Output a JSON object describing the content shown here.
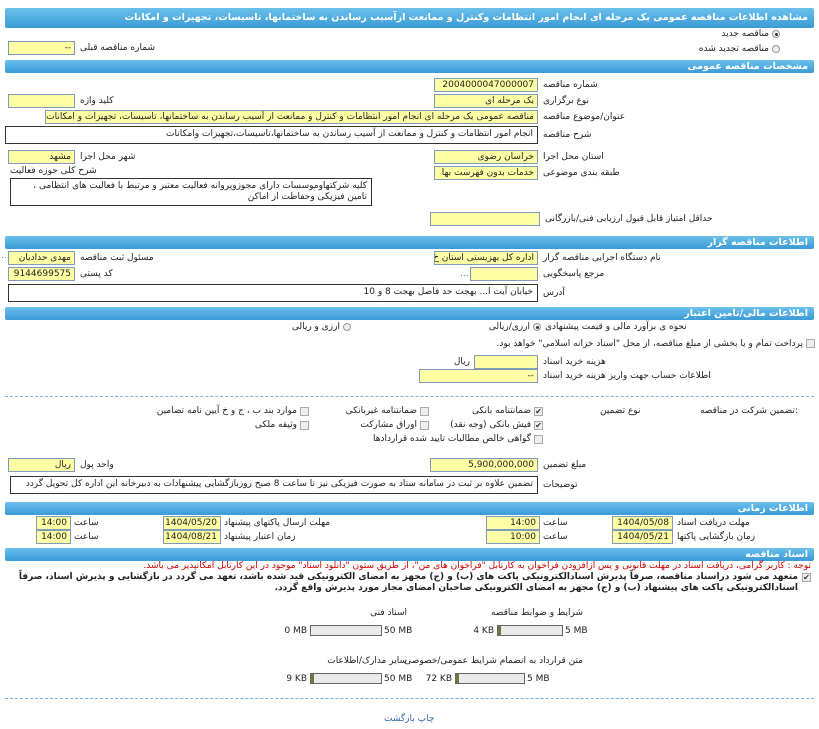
{
  "title": "مشاهده اطلاعات مناقصه عمومی یک مرحله ای انجام امور انتظامات وکنترل و ممانعت ازآسیب رساندن به ساختمانها، تاسیسات، تجهیزات و امکانات",
  "tender_type": {
    "new_label": "مناقصه جدید",
    "new_selected": true,
    "renewed_label": "مناقصه تجدید شده",
    "prev_number_label": "شماره مناقصه قبلی",
    "prev_number": "--"
  },
  "general": {
    "header": "مشخصات مناقصه عمومی",
    "number_label": "شماره مناقصه",
    "number": "2004000047000007",
    "holding_type_label": "نوع برگزاری",
    "holding_type": "یک مرحله ای",
    "keyword_label": "کلید واژه",
    "keyword": "",
    "subject_label": "عنوان/موضوع مناقصه",
    "subject": "مناقصه عمومی یک مرحله ای انجام امور انتظامات و کنترل و ممانعت از آسیب رساندن به ساختمانها، تاسیسات، تجهیزات و امکانات",
    "description_label": "شرح مناقصه",
    "description": "انجام امور انتظامات و کنترل و ممانعت از آسیب رساندن به ساختمانها،تاسیسات،تجهیزات وامکانات",
    "province_label": "استان محل اجرا",
    "province": "خراسان رضوی",
    "city_label": "شهر محل اجرا",
    "city": "مشهد",
    "category_label": "طبقه بندی موضوعی",
    "category": "خدمات بدون فهرست بها",
    "activity_label": "شرح کلی حوزه فعالیت",
    "activity": "کلیه شرکتهاوموسسات دارای مجوزوپروانه فعالیت معتبر و مرتبط با فعالیت های انتظامی ، تامین فیزیکی وحفاظت از اماکن",
    "min_score_label": "حداقل امتیاز قابل قبول ارزیابی فنی/بازرگانی",
    "min_score": ""
  },
  "organizer": {
    "header": "اطلاعات مناقصه گزار",
    "org_label": "نام دستگاه اجرایی مناقصه گزار",
    "org": "اداره کل بهزیستی استان خ",
    "responsible_label": "مسئول ثبت مناقصه",
    "responsible": "مهدی حدادیان",
    "reference_label": "مرجع پاسخگویی",
    "reference": "",
    "postal_label": "کد پستی",
    "postal": "9144699575",
    "address_label": "آدرس",
    "address": "خیابان آیت ا... بهجت حد فاصل بهجت 8 و 10",
    "more": "..."
  },
  "finance": {
    "header": "اطلاعات مالی/تامین اعتبار",
    "estimate_label": "نحوه ی برآورد مالی و قیمت پیشنهادی",
    "opt_rial": "ارزی/ریالی",
    "opt_rial_selected": true,
    "opt_both": "ارزی و ریالی",
    "treasury_label": "پرداخت تمام و یا بخشی از مبلغ مناقصه، از محل \"اسناد خزانه اسلامی\" خواهد بود.",
    "treasury_checked": false,
    "doc_cost_label": "هزینه خرید اسناد",
    "doc_cost": "",
    "doc_cost_unit": "ریال",
    "account_label": "اطلاعات حساب جهت واریز هزینه خرید اسناد",
    "account": "--"
  },
  "guarantee": {
    "label": "تضمین شرکت در مناقصه:",
    "type_label": "نوع تضمین",
    "options": [
      {
        "label": "ضمانتنامه بانکی",
        "checked": true
      },
      {
        "label": "ضمانتنامه غیربانکی",
        "checked": false
      },
      {
        "label": "موارد بند ب ، ج و خ آیین نامه تضامین",
        "checked": false
      },
      {
        "label": "فیش بانکی (وجه نقد)",
        "checked": true
      },
      {
        "label": "اوراق مشارکت",
        "checked": false
      },
      {
        "label": "وثیقه ملکی",
        "checked": false
      },
      {
        "label": "گواهی خالص مطالبات تایید شده قراردادها",
        "checked": false
      }
    ],
    "amount_label": "مبلغ تضمین",
    "amount": "5,900,000,000",
    "currency_label": "واحد پول",
    "currency": "ریال",
    "notes_label": "توضیحات",
    "notes": "تضمین علاوه بر ثبت در سامانه ستاد به صورت فیزیکی نیز تا ساعت 8 صبح روزبازگشایی پیشنهادات به دبیرخانه این اداره کل تحویل گردد"
  },
  "timing": {
    "header": "اطلاعات زمانی",
    "time_label": "ساعت",
    "doc_deadline_label": "مهلت دریافت اسناد",
    "doc_deadline": "1404/05/08",
    "doc_deadline_time": "14:00",
    "submit_deadline_label": "مهلت ارسال پاکتهای پیشنهاد",
    "submit_deadline": "1404/05/20",
    "submit_deadline_time": "14:00",
    "opening_label": "زمان بازگشایی پاکتها",
    "opening": "1404/05/21",
    "opening_time": "10:00",
    "validity_label": "زمان اعتبار پیشنهاد",
    "validity": "1404/08/21",
    "validity_time": "14:00"
  },
  "documents": {
    "header": "اسناد مناقصه",
    "notice": "توجه : کاربر گرامی، دریافت اسناد در مهلت قانونی و پس ازافزودن فراخوان به کارتابل \"فراخوان های من\"، از طریق ستون \"دانلود اسناد\" موجود در این کارتابل امکانپذیر می باشد.",
    "commitment": "متعهد می شود دراسناد مناقصه، صرفاً پذیرش اسنادالکترونیکی پاکت های (ب) و (ج) مجهز به امضای الکترونیکی قید شده باشد، تعهد می گردد در بازگشایی و پذیرش اسناد، صرفاً اسنادالکترونیکی پاکت های پیشنهاد (ب) و (ج) مجهز به امضای الکترونیکی صاحبان امضای مجاز مورد پذیرش واقع گردد.",
    "commitment_checked": true,
    "files": [
      {
        "label": "شرایط و ضوابط مناقصه",
        "size": "4 KB",
        "max": "5 MB",
        "fraction": 0.001
      },
      {
        "label": "اسناد فنی",
        "size": "0 MB",
        "max": "50 MB",
        "fraction": 0
      },
      {
        "label": "متن قرارداد به انضمام شرایط عمومی/خصوصی",
        "size": "72 KB",
        "max": "5 MB",
        "fraction": 0.014
      },
      {
        "label": "سایر مدارک/اطلاعات",
        "size": "9 KB",
        "max": "50 MB",
        "fraction": 0.0002
      }
    ]
  },
  "footer": {
    "print_back": "چاپ بازگشت"
  },
  "colors": {
    "header": "#3a9bd6",
    "input": "#ffffa6",
    "notice": "#cc0000"
  }
}
